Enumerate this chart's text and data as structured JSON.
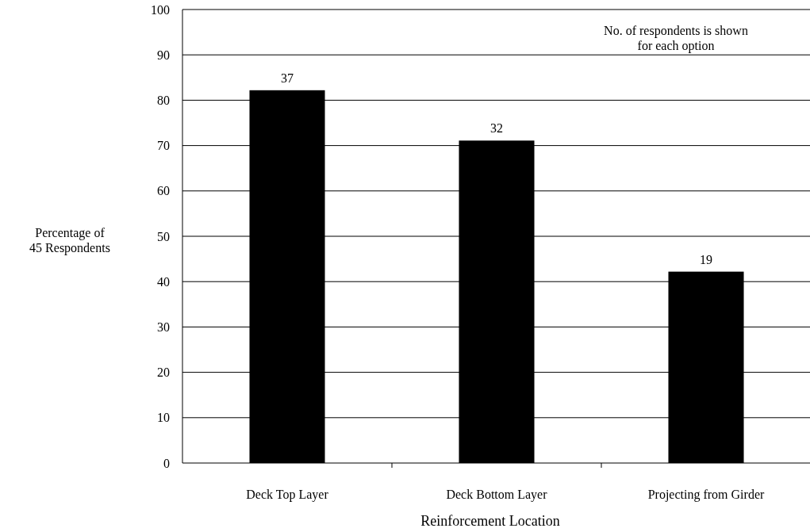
{
  "chart_data": {
    "type": "bar",
    "xlabel": "Reinforcement Location",
    "ylabel": "Percentage of\n45 Respondents",
    "categories": [
      "Deck Top Layer",
      "Deck Bottom Layer",
      "Projecting from Girder"
    ],
    "values": [
      82.2,
      71.1,
      42.2
    ],
    "color": "#000000",
    "ylim": [
      0,
      100
    ],
    "yticks": [
      0,
      10,
      20,
      30,
      40,
      50,
      60,
      70,
      80,
      90,
      100
    ],
    "grid": "y",
    "annotations": [
      "No. of respondents is shown\nfor each option",
      {
        "text": "37",
        "x": "Deck Top Layer",
        "y": 82.2
      },
      {
        "text": "32",
        "x": "Deck Bottom Layer",
        "y": 71.1
      },
      {
        "text": "19",
        "x": "Projecting from Girder",
        "y": 42.2
      }
    ]
  }
}
